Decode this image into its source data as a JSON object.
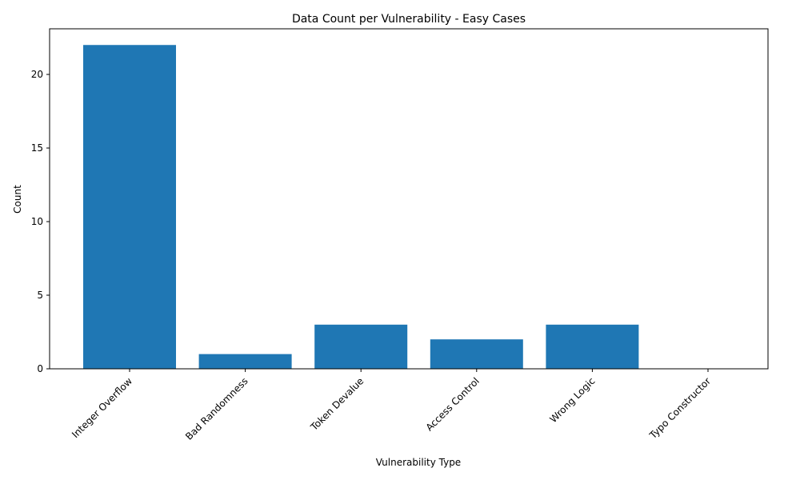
{
  "chart_data": {
    "type": "bar",
    "title": "Data Count per Vulnerability - Easy Cases",
    "xlabel": "Vulnerability Type",
    "ylabel": "Count",
    "categories": [
      "Integer Overflow",
      "Bad Randomness",
      "Token Devalue",
      "Access Control",
      "Wrong Logic",
      "Typo Constructor"
    ],
    "values": [
      22,
      1,
      3,
      2,
      3,
      0
    ],
    "ylim": [
      0,
      23.1
    ],
    "yticks": [
      0,
      5,
      10,
      15,
      20
    ],
    "grid": false,
    "bar_color": "#1f77b4"
  }
}
